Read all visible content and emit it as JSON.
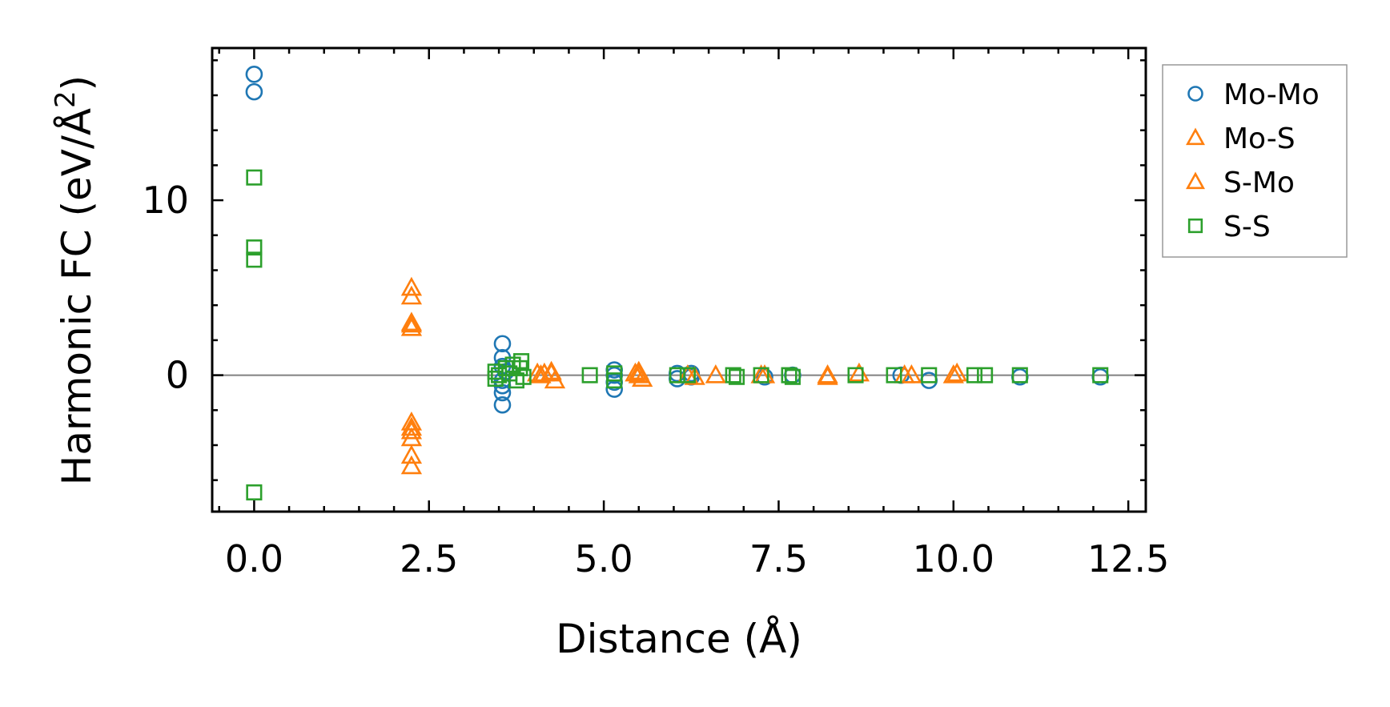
{
  "chart_data": {
    "type": "scatter",
    "title": "",
    "xlabel": "Distance (Å)",
    "ylabel_main": "Harmonic FC (eV/Å",
    "ylabel_sup": "2",
    "ylabel_close": ")",
    "xlim": [
      -0.6,
      12.75
    ],
    "ylim": [
      -7.8,
      18.7
    ],
    "x_ticks_major": [
      0.0,
      2.5,
      5.0,
      7.5,
      10.0,
      12.5
    ],
    "x_tick_labels": [
      "0.0",
      "2.5",
      "5.0",
      "7.5",
      "10.0",
      "12.5"
    ],
    "x_ticks_minor_step": 0.5,
    "y_ticks_major": [
      0,
      10
    ],
    "y_tick_labels": [
      "0",
      "10"
    ],
    "y_ticks_minor_step": 2,
    "zero_line": true,
    "legend_position": "outside-right",
    "series": [
      {
        "name": "Mo-Mo",
        "color": "#1f77b4",
        "marker": "circle",
        "points": [
          [
            0,
            17.2
          ],
          [
            0,
            16.2
          ],
          [
            3.55,
            1.8
          ],
          [
            3.55,
            1.0
          ],
          [
            3.55,
            0.5
          ],
          [
            3.55,
            -0.3
          ],
          [
            3.55,
            -0.6
          ],
          [
            3.55,
            -1.0
          ],
          [
            3.55,
            -1.7
          ],
          [
            3.6,
            0.2
          ],
          [
            5.15,
            0.3
          ],
          [
            5.15,
            0.0
          ],
          [
            5.15,
            -0.4
          ],
          [
            5.15,
            -0.8
          ],
          [
            6.05,
            0.1
          ],
          [
            6.05,
            -0.2
          ],
          [
            6.25,
            0.1
          ],
          [
            6.25,
            -0.1
          ],
          [
            7.3,
            -0.1
          ],
          [
            7.7,
            0.0
          ],
          [
            9.25,
            0.0
          ],
          [
            9.65,
            -0.3
          ],
          [
            10.95,
            -0.1
          ],
          [
            12.1,
            -0.1
          ]
        ]
      },
      {
        "name": "Mo-S",
        "color": "#ff7f0e",
        "marker": "triangle",
        "points": [
          [
            2.25,
            5.0
          ],
          [
            2.25,
            4.5
          ],
          [
            2.25,
            3.0
          ],
          [
            2.25,
            2.7
          ],
          [
            2.25,
            -2.7
          ],
          [
            2.25,
            -3.2
          ],
          [
            2.25,
            -3.6
          ],
          [
            2.25,
            -4.6
          ],
          [
            2.25,
            -5.2
          ],
          [
            4.05,
            0.1
          ],
          [
            4.1,
            0.0
          ],
          [
            4.25,
            0.2
          ],
          [
            4.3,
            -0.3
          ],
          [
            5.45,
            0.1
          ],
          [
            5.5,
            0.2
          ],
          [
            5.55,
            -0.2
          ],
          [
            6.3,
            -0.1
          ],
          [
            6.6,
            0.0
          ],
          [
            7.3,
            0.0
          ],
          [
            8.2,
            0.0
          ],
          [
            8.65,
            0.1
          ],
          [
            9.4,
            0.0
          ],
          [
            10.0,
            0.0
          ]
        ]
      },
      {
        "name": "S-Mo",
        "color": "#ff7f0e",
        "marker": "triangle",
        "points": [
          [
            2.25,
            2.9
          ],
          [
            2.25,
            -3.0
          ],
          [
            4.15,
            0.1
          ],
          [
            4.25,
            0.1
          ],
          [
            5.5,
            0.0
          ],
          [
            6.2,
            0.0
          ],
          [
            7.25,
            0.0
          ],
          [
            8.2,
            -0.1
          ],
          [
            9.3,
            0.0
          ],
          [
            10.05,
            0.1
          ]
        ]
      },
      {
        "name": "S-S",
        "color": "#2ca02c",
        "marker": "square",
        "points": [
          [
            0,
            11.3
          ],
          [
            0,
            7.3
          ],
          [
            0,
            6.6
          ],
          [
            0,
            -6.7
          ],
          [
            3.45,
            0.2
          ],
          [
            3.45,
            -0.2
          ],
          [
            3.5,
            0.0
          ],
          [
            3.6,
            0.4
          ],
          [
            3.65,
            0.1
          ],
          [
            3.7,
            0.6
          ],
          [
            3.75,
            -0.3
          ],
          [
            3.8,
            0.4
          ],
          [
            3.82,
            0.8
          ],
          [
            3.85,
            -0.1
          ],
          [
            4.8,
            0.0
          ],
          [
            5.15,
            0.1
          ],
          [
            5.15,
            -0.3
          ],
          [
            6.05,
            0.0
          ],
          [
            6.2,
            0.0
          ],
          [
            6.85,
            0.0
          ],
          [
            6.9,
            -0.1
          ],
          [
            7.25,
            0.0
          ],
          [
            7.65,
            0.0
          ],
          [
            7.7,
            -0.1
          ],
          [
            8.6,
            0.0
          ],
          [
            9.15,
            0.0
          ],
          [
            9.65,
            0.0
          ],
          [
            10.3,
            0.0
          ],
          [
            10.45,
            0.0
          ],
          [
            10.95,
            0.0
          ],
          [
            12.1,
            0.0
          ]
        ]
      }
    ]
  }
}
